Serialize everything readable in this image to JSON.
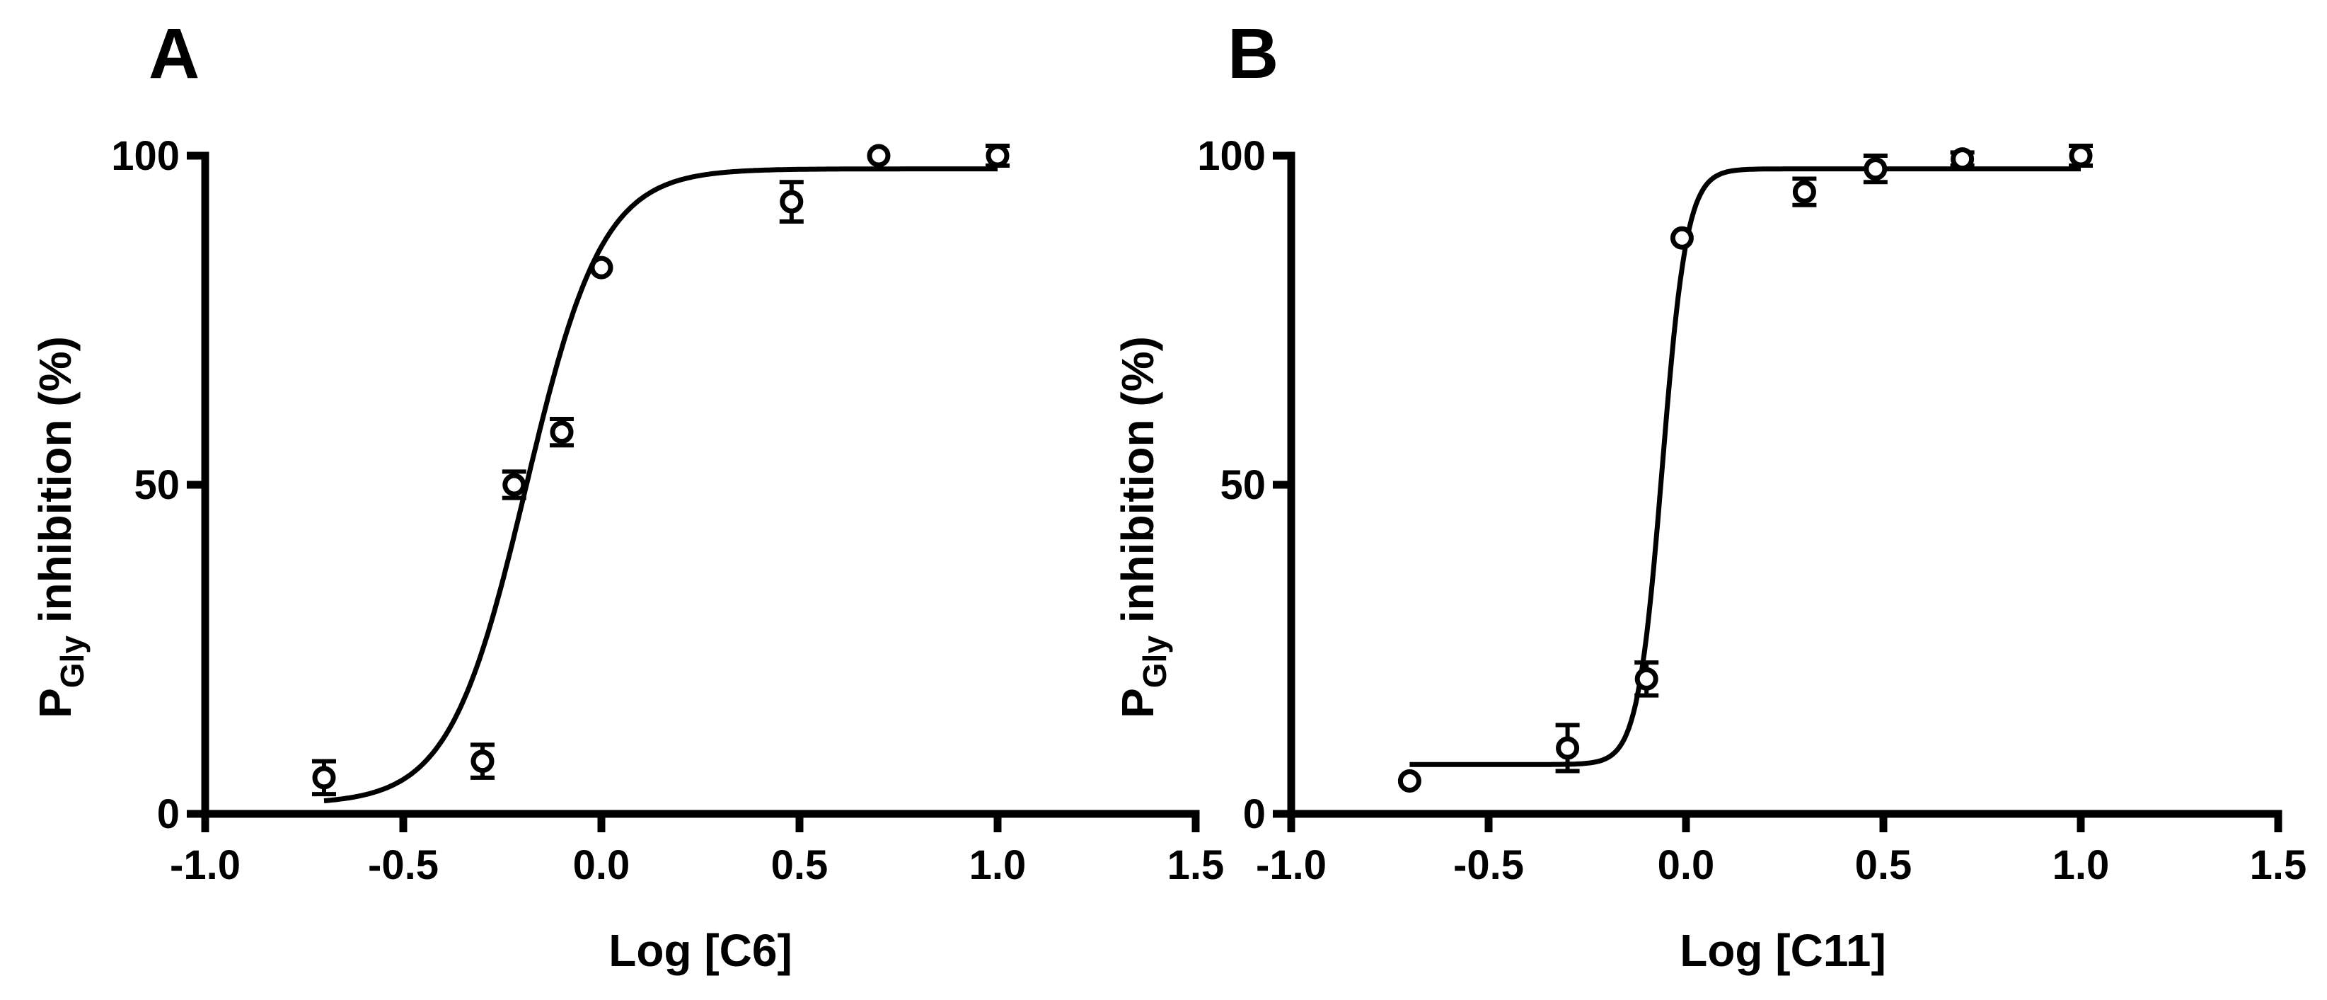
{
  "chart_data": [
    {
      "panel": "A",
      "type": "scatter",
      "xlabel": "Log [C6]",
      "ylabel": {
        "prefix": "P",
        "subscript": "Gly",
        "suffix": " inhibition (%)"
      },
      "xlim": [
        -1.0,
        1.5
      ],
      "ylim": [
        0,
        100
      ],
      "xticks": [
        -1.0,
        -0.5,
        0.0,
        0.5,
        1.0,
        1.5
      ],
      "xtick_labels": [
        "-1.0",
        "-0.5",
        "0.0",
        "0.5",
        "1.0",
        "1.5"
      ],
      "yticks": [
        0,
        50,
        100
      ],
      "ytick_labels": [
        "0",
        "50",
        "100"
      ],
      "points": [
        {
          "x": -0.7,
          "y": 5.5,
          "err": 2.5
        },
        {
          "x": -0.3,
          "y": 8,
          "err": 2.5
        },
        {
          "x": -0.22,
          "y": 50,
          "err": 2
        },
        {
          "x": -0.1,
          "y": 58,
          "err": 2
        },
        {
          "x": 0.0,
          "y": 83,
          "err": 0.5
        },
        {
          "x": 0.48,
          "y": 93,
          "err": 3
        },
        {
          "x": 0.7,
          "y": 100,
          "err": 0.5
        },
        {
          "x": 1.0,
          "y": 100,
          "err": 1.5
        }
      ],
      "fit": {
        "bottom": 1.5,
        "top": 98,
        "logEC50": -0.19,
        "hill": 4.5,
        "x_range": [
          -0.7,
          1.0
        ]
      }
    },
    {
      "panel": "B",
      "type": "scatter",
      "xlabel": "Log [C11]",
      "ylabel": {
        "prefix": "P",
        "subscript": "Gly",
        "suffix": " inhibition (%)"
      },
      "xlim": [
        -1.0,
        1.5
      ],
      "ylim": [
        0,
        100
      ],
      "xticks": [
        -1.0,
        -0.5,
        0.0,
        0.5,
        1.0,
        1.5
      ],
      "xtick_labels": [
        "-1.0",
        "-0.5",
        "0.0",
        "0.5",
        "1.0",
        "1.5"
      ],
      "yticks": [
        0,
        50,
        100
      ],
      "ytick_labels": [
        "0",
        "50",
        "100"
      ],
      "points": [
        {
          "x": -0.7,
          "y": 5,
          "err": 0.5
        },
        {
          "x": -0.3,
          "y": 10,
          "err": 3.5
        },
        {
          "x": -0.1,
          "y": 20.5,
          "err": 2.5
        },
        {
          "x": -0.01,
          "y": 87.5,
          "err": 0.5
        },
        {
          "x": 0.3,
          "y": 94.5,
          "err": 2
        },
        {
          "x": 0.48,
          "y": 98,
          "err": 2
        },
        {
          "x": 0.7,
          "y": 99.5,
          "err": 1
        },
        {
          "x": 1.0,
          "y": 100,
          "err": 1.5
        }
      ],
      "fit": {
        "bottom": 7.5,
        "top": 98,
        "logEC50": -0.06,
        "hill": 14,
        "x_range": [
          -0.7,
          1.0
        ]
      }
    }
  ]
}
